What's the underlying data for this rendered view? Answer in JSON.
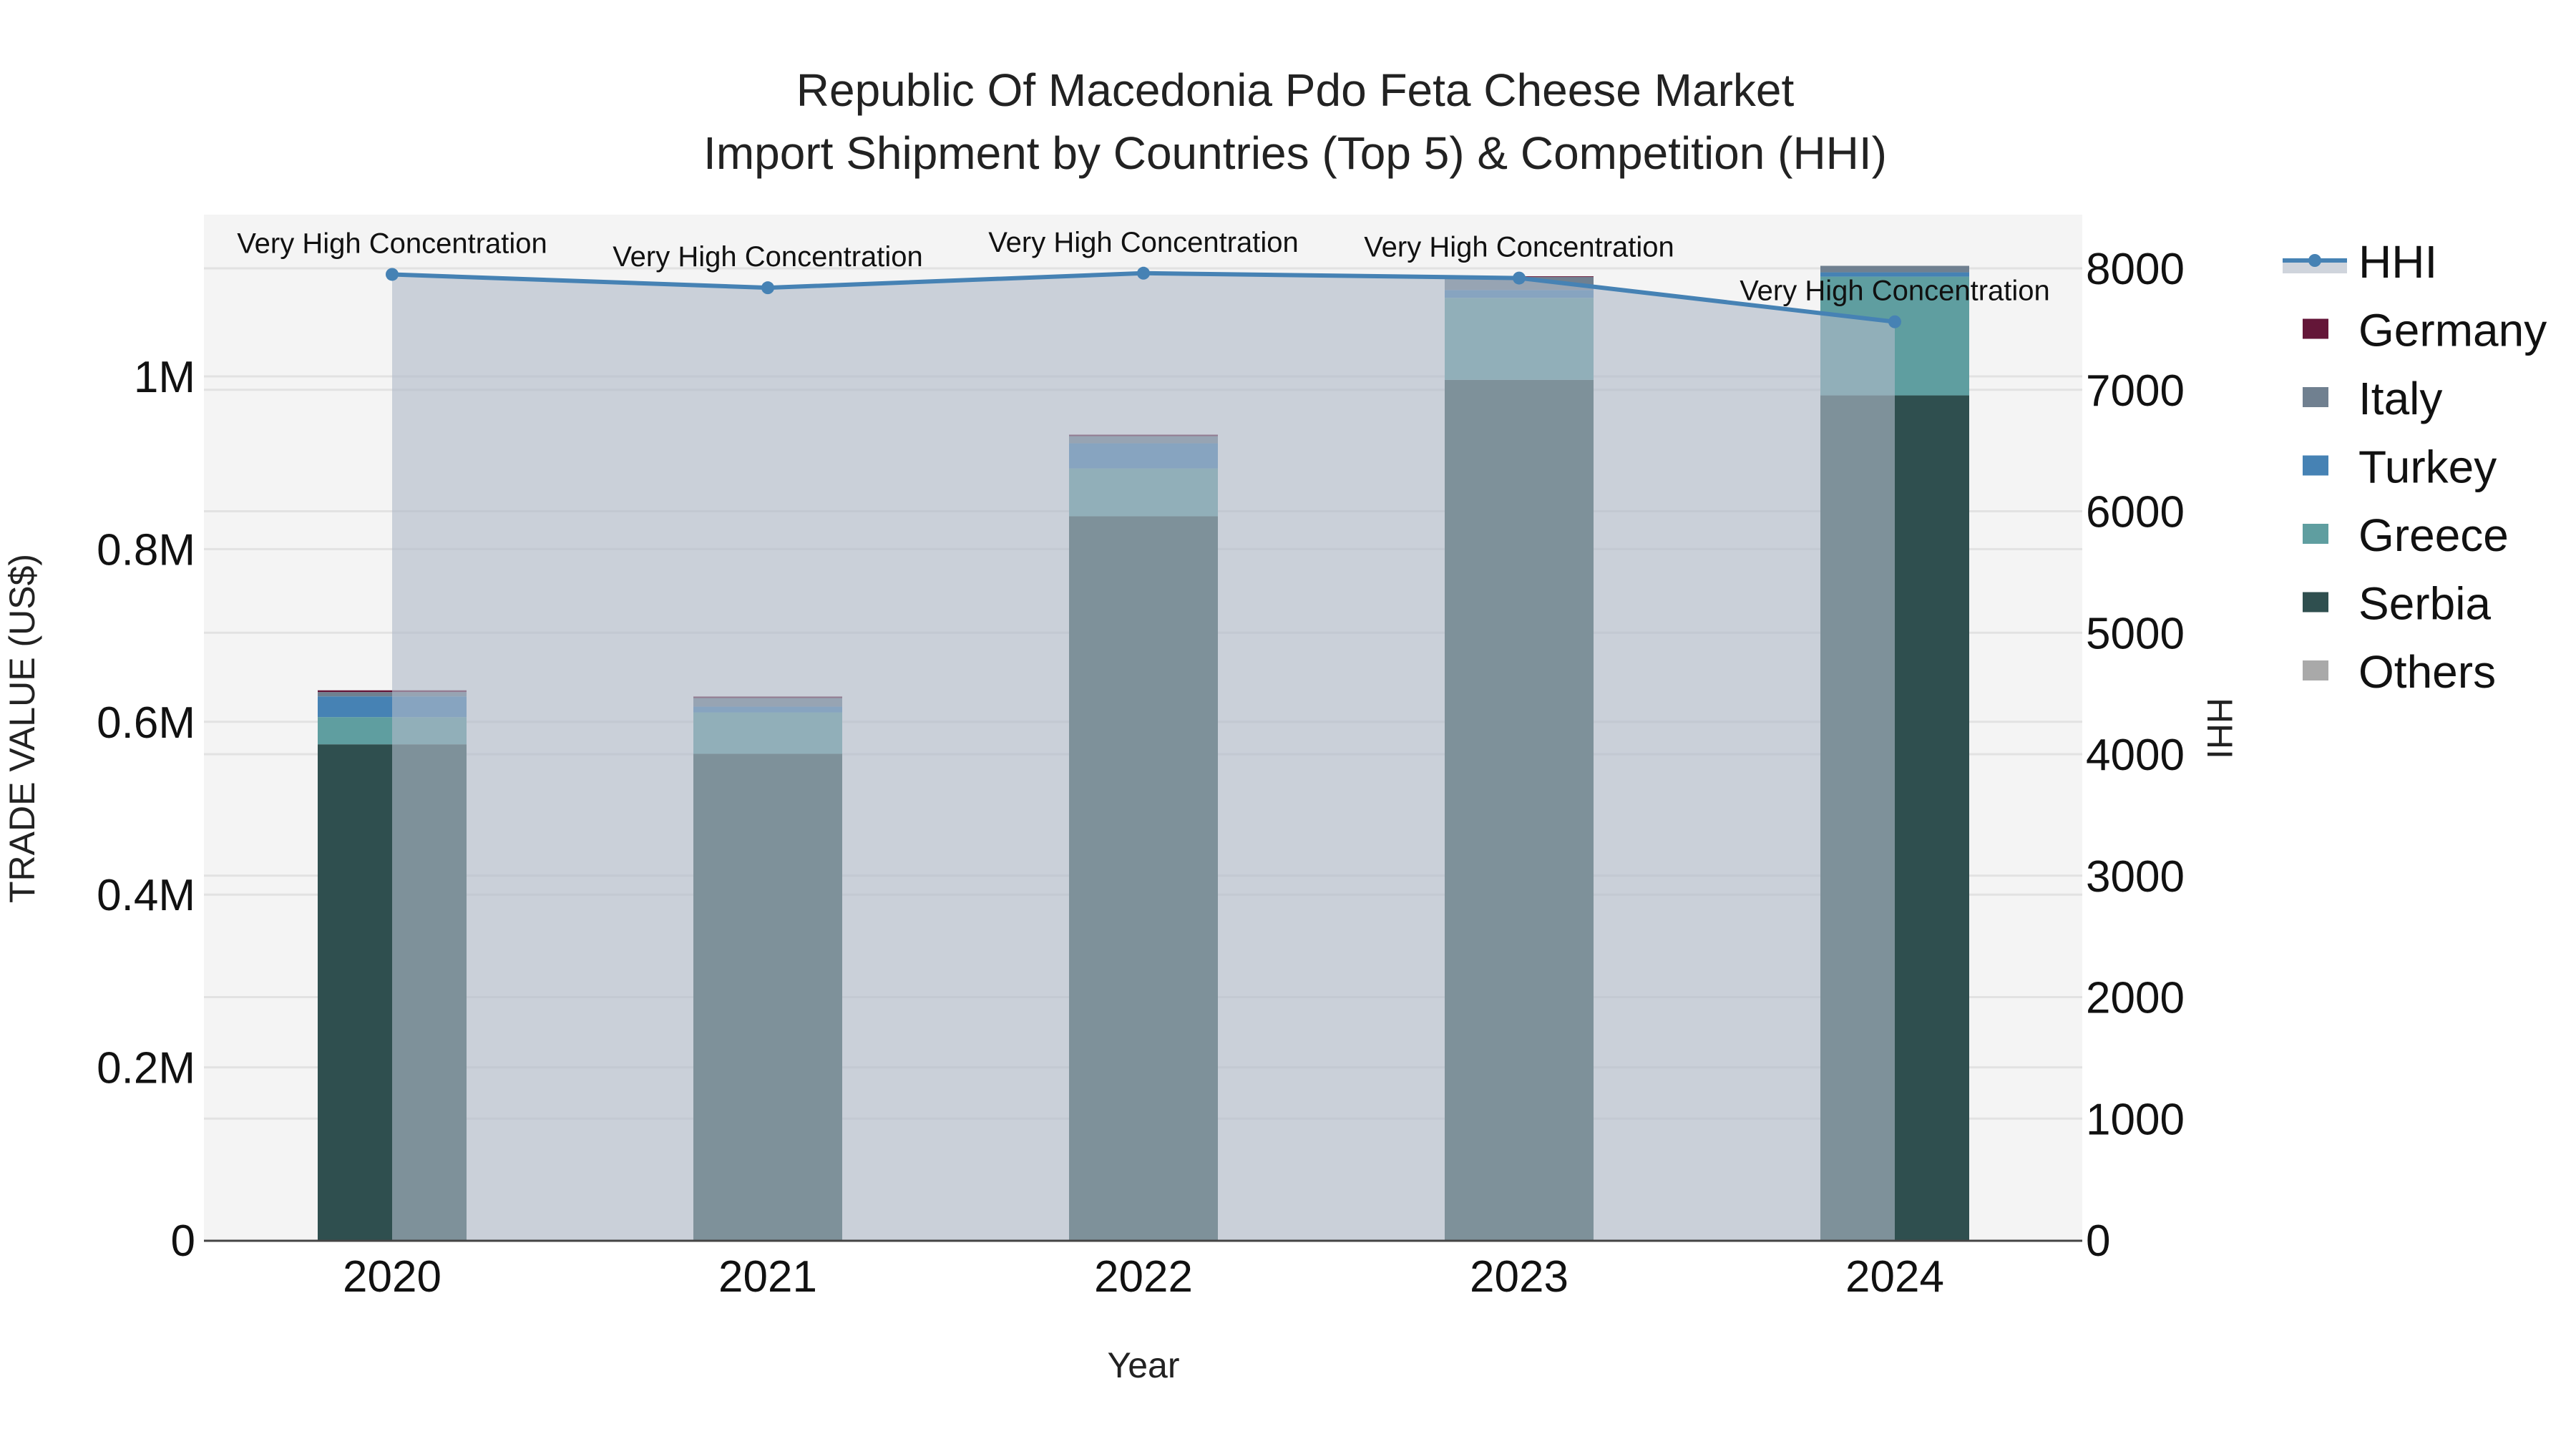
{
  "title": {
    "line1": "Republic Of Macedonia Pdo Feta Cheese Market",
    "line2": "Import Shipment by Countries (Top 5) & Competition (HHI)"
  },
  "axes": {
    "x_title": "Year",
    "y_left_title": "TRADE VALUE (US$)",
    "y_right_title": "HHI",
    "y_left_ticks": [
      "0",
      "0.2M",
      "0.4M",
      "0.6M",
      "0.8M",
      "1M"
    ],
    "y_right_ticks": [
      "0",
      "1000",
      "2000",
      "3000",
      "4000",
      "5000",
      "6000",
      "7000",
      "8000"
    ]
  },
  "legend": {
    "items": [
      {
        "label": "HHI",
        "color": "#4682B4",
        "type": "line"
      },
      {
        "label": "Germany",
        "color": "#641638",
        "type": "box"
      },
      {
        "label": "Italy",
        "color": "#708090",
        "type": "box"
      },
      {
        "label": "Turkey",
        "color": "#4682B4",
        "type": "box"
      },
      {
        "label": "Greece",
        "color": "#5F9EA0",
        "type": "box"
      },
      {
        "label": "Serbia",
        "color": "#2F4F4F",
        "type": "box"
      },
      {
        "label": "Others",
        "color": "#A9A9A9",
        "type": "box"
      }
    ]
  },
  "annotation_label": "Very High Concentration",
  "chart_data": {
    "type": "bar",
    "title": "Republic Of Macedonia Pdo Feta Cheese Market Import Shipment by Countries (Top 5) & Competition (HHI)",
    "xlabel": "Year",
    "ylabel": "TRADE VALUE (US$)",
    "y2label": "HHI",
    "categories": [
      "2020",
      "2021",
      "2022",
      "2023",
      "2024"
    ],
    "stacked": true,
    "ylim": [
      0,
      1190000
    ],
    "y2lim": [
      0,
      8500
    ],
    "grid": true,
    "legend_position": "right",
    "series": [
      {
        "name": "Serbia",
        "color": "#2F4F4F",
        "values": [
          574000,
          563000,
          838000,
          996000,
          978000
        ]
      },
      {
        "name": "Greece",
        "color": "#5F9EA0",
        "values": [
          31500,
          48000,
          55500,
          95000,
          137500
        ]
      },
      {
        "name": "Turkey",
        "color": "#4682B4",
        "values": [
          24000,
          6600,
          29000,
          9100,
          5000
        ]
      },
      {
        "name": "Italy",
        "color": "#708090",
        "values": [
          5000,
          10000,
          8300,
          15000,
          7500
        ]
      },
      {
        "name": "Germany",
        "color": "#641638",
        "values": [
          2000,
          1700,
          1700,
          800,
          0
        ]
      },
      {
        "name": "Others",
        "color": "#A9A9A9",
        "values": [
          0,
          0,
          0,
          0,
          0
        ]
      }
    ],
    "line_series": {
      "name": "HHI",
      "axis": "y2",
      "color": "#4682B4",
      "values": [
        7950,
        7840,
        7960,
        7920,
        7560
      ],
      "annotations": [
        "Very High Concentration",
        "Very High Concentration",
        "Very High Concentration",
        "Very High Concentration",
        "Very High Concentration"
      ]
    }
  }
}
